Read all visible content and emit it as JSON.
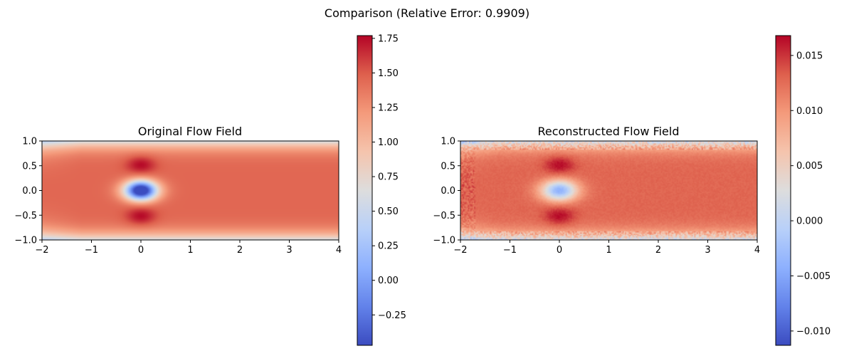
{
  "figure": {
    "suptitle": "Comparison (Relative Error: 0.9909)"
  },
  "chart_data": [
    {
      "type": "heatmap",
      "title": "Original Flow Field",
      "xlabel": "",
      "ylabel": "",
      "xlim": [
        -2,
        4
      ],
      "ylim": [
        -1,
        1
      ],
      "x_ticks": [
        -2,
        -1,
        0,
        1,
        2,
        3,
        4
      ],
      "x_tick_labels": [
        "−2",
        "−1",
        "0",
        "1",
        "2",
        "3",
        "4"
      ],
      "y_ticks": [
        1.0,
        0.5,
        0.0,
        -0.5,
        -1.0
      ],
      "y_tick_labels": [
        "1.0",
        "0.5",
        "0.0",
        "−0.5",
        "−1.0"
      ],
      "colormap": "coolwarm",
      "value_range": [
        -0.47,
        1.77
      ],
      "colorbar_ticks": [
        1.75,
        1.5,
        1.25,
        1.0,
        0.75,
        0.5,
        0.25,
        0.0,
        -0.25
      ],
      "colorbar_tick_labels": [
        "1.75",
        "1.50",
        "1.25",
        "1.00",
        "0.75",
        "0.50",
        "0.25",
        "0.00",
        "−0.25"
      ],
      "field": {
        "description_values": {
          "freestream_core": 1.45,
          "wall_min": 0.45,
          "lobe_peak": 1.75,
          "center_obstacle_min": -0.4
        }
      },
      "noise": false
    },
    {
      "type": "heatmap",
      "title": "Reconstructed Flow Field",
      "xlabel": "",
      "ylabel": "",
      "xlim": [
        -2,
        4
      ],
      "ylim": [
        -1,
        1
      ],
      "x_ticks": [
        -2,
        -1,
        0,
        1,
        2,
        3,
        4
      ],
      "x_tick_labels": [
        "−2",
        "−1",
        "0",
        "1",
        "2",
        "3",
        "4"
      ],
      "y_ticks": [
        1.0,
        0.5,
        0.0,
        -0.5,
        -1.0
      ],
      "y_tick_labels": [
        "1.0",
        "0.5",
        "0.0",
        "−0.5",
        "−1.0"
      ],
      "colormap": "coolwarm",
      "value_range": [
        -0.0113,
        0.0168
      ],
      "colorbar_ticks": [
        0.015,
        0.01,
        0.005,
        0.0,
        -0.005,
        -0.01
      ],
      "colorbar_tick_labels": [
        "0.015",
        "0.010",
        "0.005",
        "0.000",
        "−0.005",
        "−0.010"
      ],
      "field": {
        "description_values": {
          "freestream_core": 0.0135,
          "wall_min": -0.004,
          "lobe_peak": 0.0165,
          "center_obstacle_min": 0.0
        }
      },
      "noise": true
    }
  ]
}
